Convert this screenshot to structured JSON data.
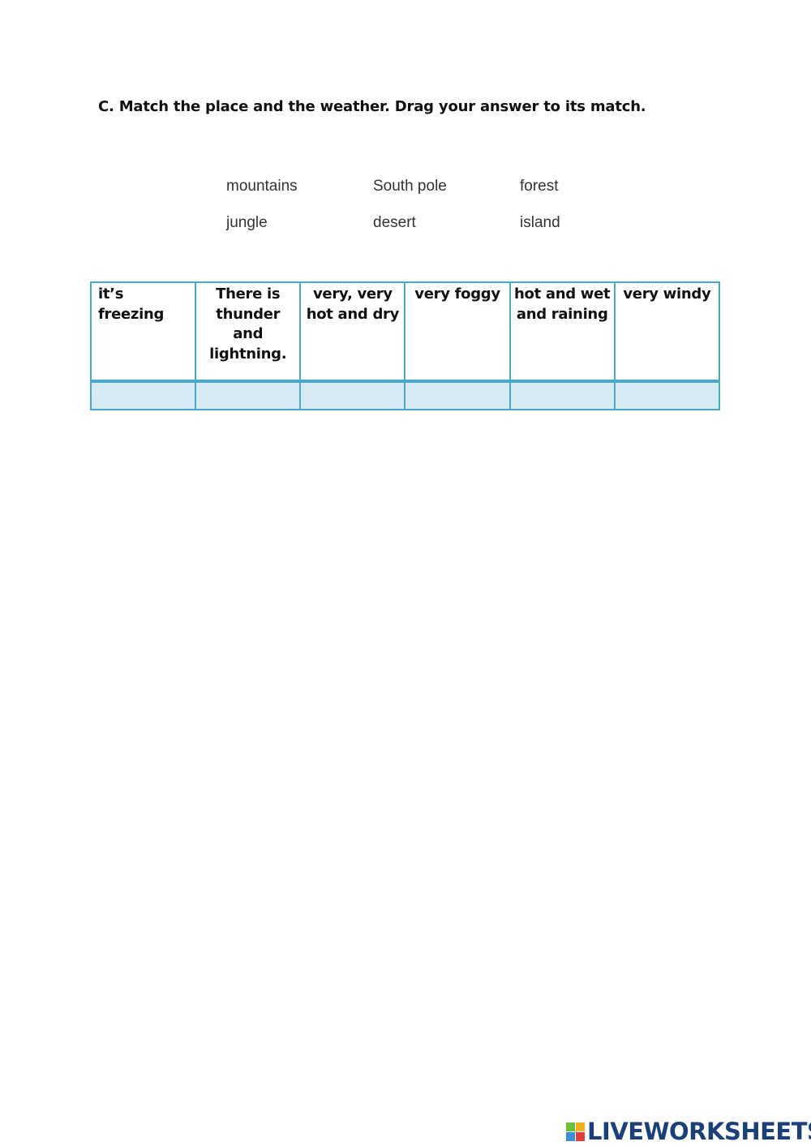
{
  "instruction": "C. Match the place and the weather. Drag your answer to its match.",
  "word_bank": [
    "mountains",
    "South pole",
    "forest",
    "jungle",
    "desert",
    "island"
  ],
  "table": {
    "headers": [
      "it’s freezing",
      "There is thunder and lightning.",
      "very, very hot and dry",
      "very foggy",
      "hot and wet and raining",
      "very windy"
    ],
    "answers": [
      "",
      "",
      "",
      "",
      "",
      ""
    ]
  },
  "logo": {
    "text": "LIVEWORKSHEETS",
    "letters": [
      "L",
      "I",
      "V",
      "E"
    ],
    "colors": [
      "#6cbf3b",
      "#f2b01e",
      "#3b8fd6",
      "#e23b3b"
    ]
  }
}
